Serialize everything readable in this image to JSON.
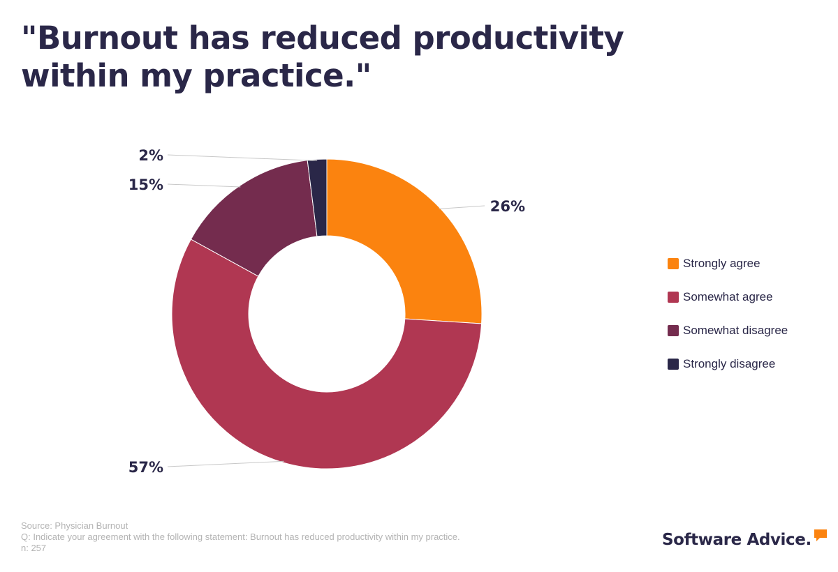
{
  "title": "\"Burnout has reduced productivity within my practice.\"",
  "chart_data": {
    "type": "pie",
    "variant": "donut",
    "title": "\"Burnout has reduced productivity within my practice.\"",
    "categories": [
      "Strongly agree",
      "Somewhat agree",
      "Somewhat disagree",
      "Strongly disagree"
    ],
    "values": [
      26,
      57,
      15,
      2
    ],
    "value_labels": [
      "26%",
      "57%",
      "15%",
      "2%"
    ],
    "colors": [
      "#fb830f",
      "#b03752",
      "#742c4e",
      "#2a2748"
    ],
    "legend_position": "right"
  },
  "footer": {
    "source": "Source: Physician Burnout",
    "question": "Q: Indicate your agreement with the following statement: Burnout has reduced productivity within my practice.",
    "n": "n: 257"
  },
  "brand": {
    "name": "Software Advice.",
    "icon": "speech-bubble-icon",
    "icon_color": "#fb830f"
  }
}
